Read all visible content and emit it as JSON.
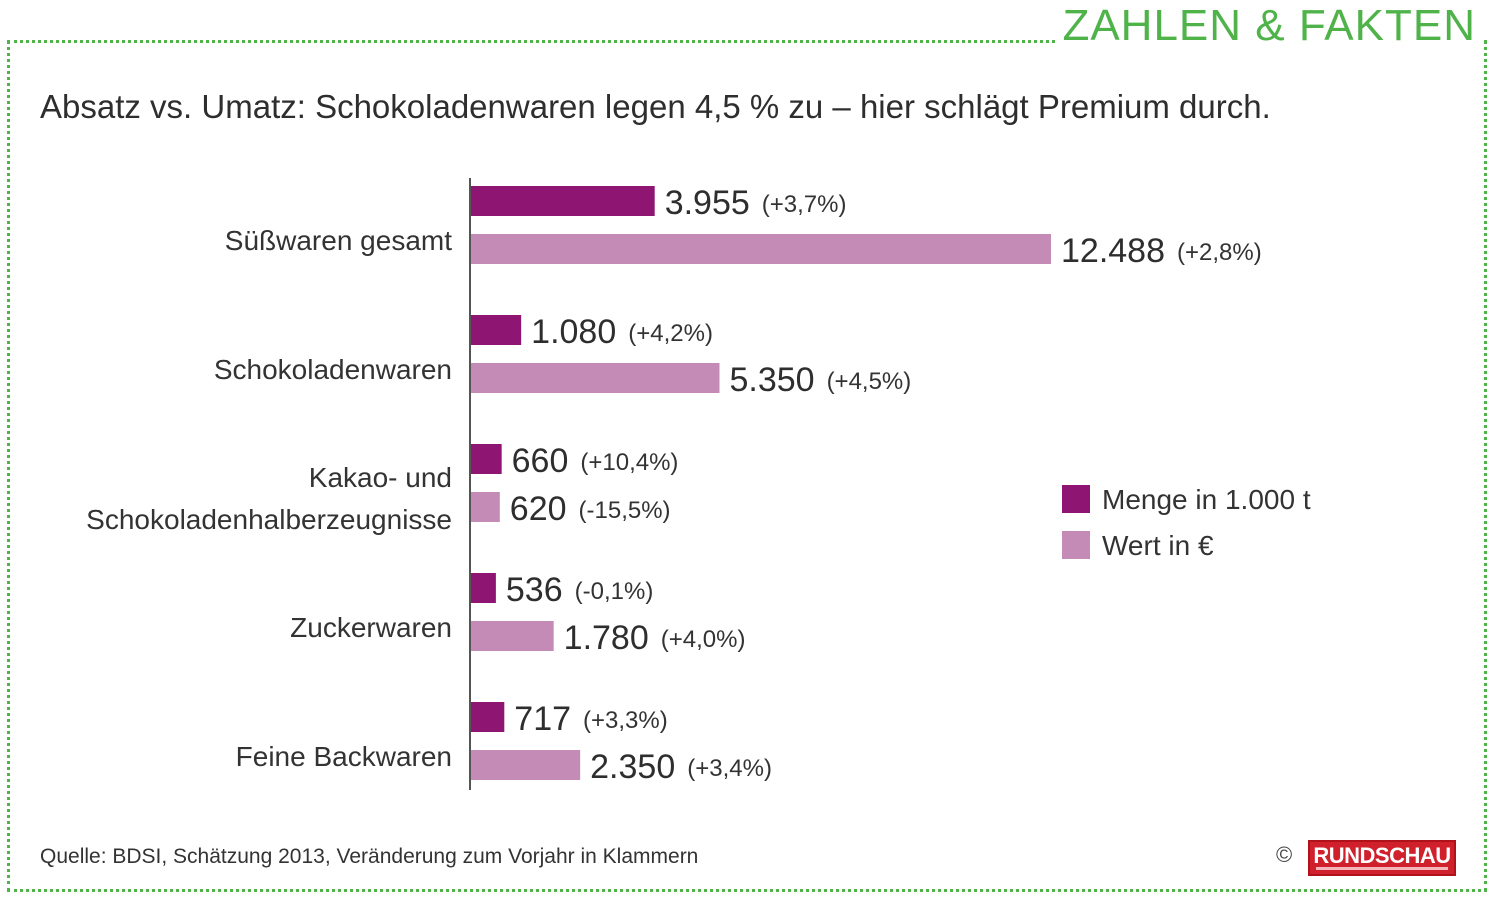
{
  "header": {
    "label": "ZAHLEN & FAKTEN"
  },
  "colors": {
    "accent_green": "#4fb34a",
    "menge": "#8e1672",
    "wert": "#c38bb6"
  },
  "chart_data": {
    "type": "bar",
    "orientation": "horizontal",
    "title": "Absatz vs. Umatz: Schokoladenwaren legen 4,5 % zu – hier schlägt Premium durch.",
    "categories": [
      "Süßwaren gesamt",
      "Schokoladenwaren",
      "Kakao- und Schokoladenhalberzeugnisse",
      "Zuckerwaren",
      "Feine Backwaren"
    ],
    "category_lines": [
      [
        "Süßwaren gesamt"
      ],
      [
        "Schokoladenwaren"
      ],
      [
        "Kakao- und",
        "Schokoladenhalberzeugnisse"
      ],
      [
        "Zuckerwaren"
      ],
      [
        "Feine Backwaren"
      ]
    ],
    "series": [
      {
        "name": "Menge in 1.000 t",
        "values": [
          3955,
          1080,
          660,
          536,
          717
        ],
        "value_labels": [
          "3.955",
          "1.080",
          "660",
          "536",
          "717"
        ],
        "change_labels": [
          "(+3,7%)",
          "(+4,2%)",
          "(+10,4%)",
          "(-0,1%)",
          "(+3,3%)"
        ]
      },
      {
        "name": "Wert in €",
        "values": [
          12488,
          5350,
          620,
          1780,
          2350
        ],
        "value_labels": [
          "12.488",
          "5.350",
          "620",
          "1.780",
          "2.350"
        ],
        "change_labels": [
          "(+2,8%)",
          "(+4,5%)",
          "(-15,5%)",
          "(+4,0%)",
          "(+3,4%)"
        ]
      }
    ],
    "legend_position": "right",
    "grid": false
  },
  "footer": {
    "source": "Quelle: BDSI, Schätzung 2013, Veränderung zum Vorjahr in Klammern",
    "copyright": "©",
    "logo_text": "RUNDSCHAU"
  }
}
